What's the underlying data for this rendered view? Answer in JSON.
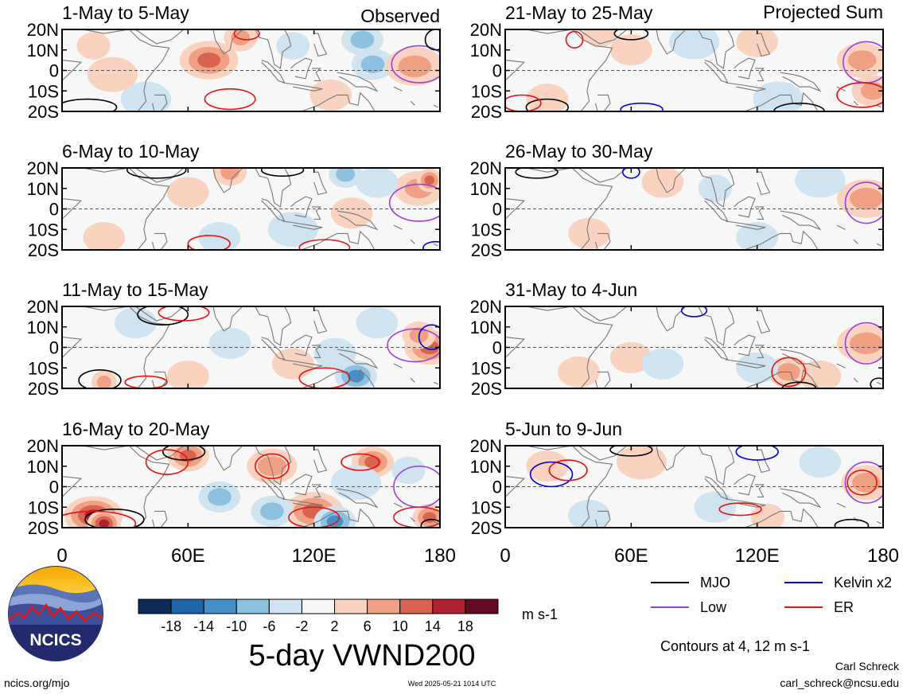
{
  "figure": {
    "title": "5-day VWND200",
    "footer_left": "ncics.org/mjo",
    "footer_center": "Wed 2025-05-21 1014 UTC",
    "author": "Carl Schreck",
    "email": "carl_schreck@ncsu.edu",
    "contour_note": "Contours at 4, 12 m s-1",
    "logo_text": "NCICS"
  },
  "chart_data": {
    "type": "heatmap",
    "variable": "VWND200",
    "units": "m s-1",
    "x_range": [
      0,
      180
    ],
    "y_range": [
      -20,
      20
    ],
    "x_ticks": [
      "0",
      "60E",
      "120E",
      "180"
    ],
    "x_tick_values": [
      0,
      60,
      120,
      180
    ],
    "y_ticks": [
      "20N",
      "10N",
      "0",
      "10S",
      "20S"
    ],
    "y_tick_values": [
      20,
      10,
      0,
      -10,
      -20
    ],
    "column_labels": [
      "Observed",
      "Projected Sum"
    ],
    "panels": [
      {
        "title": "1-May to 5-May",
        "column": 0,
        "row": 0,
        "kind": "observed",
        "blobs": [
          [
            70,
            5,
            12,
            14
          ],
          [
            40,
            -14,
            -4,
            12
          ],
          [
            85,
            16,
            8,
            8
          ],
          [
            143,
            15,
            -10,
            10
          ],
          [
            148,
            3,
            -7,
            10
          ],
          [
            110,
            12,
            -5,
            8
          ],
          [
            168,
            2,
            8,
            14
          ],
          [
            128,
            -12,
            6,
            10
          ],
          [
            24,
            -2,
            4,
            12
          ],
          [
            15,
            12,
            4,
            8
          ]
        ],
        "contours": [
          {
            "t": "ER",
            "x": 80,
            "y": -14,
            "rx": 12,
            "ry": 5
          },
          {
            "t": "Low",
            "x": 170,
            "y": 3,
            "rx": 13,
            "ry": 9
          },
          {
            "t": "MJO",
            "x": 12,
            "y": -18,
            "rx": 14,
            "ry": 4
          },
          {
            "t": "ER",
            "x": 88,
            "y": 18,
            "rx": 6,
            "ry": 3
          },
          {
            "t": "MJO",
            "x": 178,
            "y": 15,
            "rx": 5,
            "ry": 5
          }
        ]
      },
      {
        "title": "6-May to 10-May",
        "column": 0,
        "row": 1,
        "kind": "observed",
        "blobs": [
          [
            170,
            10,
            10,
            12
          ],
          [
            175,
            14,
            14,
            6
          ],
          [
            80,
            18,
            10,
            8
          ],
          [
            135,
            17,
            -8,
            8
          ],
          [
            150,
            13,
            -6,
            10
          ],
          [
            110,
            -10,
            -5,
            12
          ],
          [
            75,
            -14,
            -4,
            10
          ],
          [
            60,
            8,
            4,
            10
          ],
          [
            138,
            -2,
            4,
            10
          ],
          [
            20,
            -14,
            5,
            10
          ]
        ],
        "contours": [
          {
            "t": "Low",
            "x": 170,
            "y": 3,
            "rx": 14,
            "ry": 9
          },
          {
            "t": "ER",
            "x": 70,
            "y": -17,
            "rx": 10,
            "ry": 4
          },
          {
            "t": "ER",
            "x": 125,
            "y": -19,
            "rx": 12,
            "ry": 4
          },
          {
            "t": "MJO",
            "x": 45,
            "y": 19,
            "rx": 14,
            "ry": 4
          },
          {
            "t": "MJO",
            "x": 105,
            "y": 19,
            "rx": 10,
            "ry": 3
          },
          {
            "t": "Kelvin x2",
            "x": 178,
            "y": -19,
            "rx": 6,
            "ry": 3
          }
        ]
      },
      {
        "title": "11-May to 15-May",
        "column": 0,
        "row": 2,
        "kind": "observed",
        "blobs": [
          [
            175,
            0,
            12,
            12
          ],
          [
            170,
            6,
            8,
            8
          ],
          [
            140,
            -14,
            -12,
            10
          ],
          [
            130,
            -3,
            -6,
            10
          ],
          [
            20,
            -17,
            10,
            6
          ],
          [
            35,
            12,
            -5,
            10
          ],
          [
            110,
            -8,
            4,
            10
          ],
          [
            150,
            12,
            -4,
            10
          ],
          [
            60,
            -14,
            4,
            10
          ],
          [
            80,
            2,
            -4,
            10
          ]
        ],
        "contours": [
          {
            "t": "Low",
            "x": 168,
            "y": 1,
            "rx": 13,
            "ry": 8
          },
          {
            "t": "Kelvin x2",
            "x": 176,
            "y": 5,
            "rx": 6,
            "ry": 6
          },
          {
            "t": "MJO",
            "x": 48,
            "y": 16,
            "rx": 12,
            "ry": 5
          },
          {
            "t": "ER",
            "x": 58,
            "y": 17,
            "rx": 12,
            "ry": 4
          },
          {
            "t": "MJO",
            "x": 18,
            "y": -16,
            "rx": 10,
            "ry": 5
          },
          {
            "t": "ER",
            "x": 125,
            "y": -15,
            "rx": 12,
            "ry": 5
          },
          {
            "t": "ER",
            "x": 40,
            "y": -17,
            "rx": 10,
            "ry": 3
          }
        ]
      },
      {
        "title": "16-May to 20-May",
        "column": 0,
        "row": 3,
        "kind": "observed",
        "blobs": [
          [
            15,
            -14,
            16,
            14
          ],
          [
            20,
            -18,
            18,
            8
          ],
          [
            120,
            -12,
            14,
            14
          ],
          [
            130,
            -17,
            -12,
            10
          ],
          [
            100,
            -12,
            -10,
            10
          ],
          [
            60,
            15,
            12,
            10
          ],
          [
            100,
            10,
            10,
            12
          ],
          [
            148,
            12,
            12,
            10
          ],
          [
            140,
            2,
            -6,
            12
          ],
          [
            175,
            -15,
            12,
            8
          ],
          [
            75,
            -5,
            -8,
            10
          ],
          [
            165,
            8,
            -6,
            8
          ]
        ],
        "contours": [
          {
            "t": "MJO",
            "x": 25,
            "y": -16,
            "rx": 14,
            "ry": 5
          },
          {
            "t": "ER",
            "x": 15,
            "y": -18,
            "rx": 20,
            "ry": 6
          },
          {
            "t": "ER",
            "x": 120,
            "y": -15,
            "rx": 12,
            "ry": 5
          },
          {
            "t": "ER",
            "x": 100,
            "y": 10,
            "rx": 8,
            "ry": 6
          },
          {
            "t": "ER",
            "x": 142,
            "y": 12,
            "rx": 9,
            "ry": 4
          },
          {
            "t": "Low",
            "x": 170,
            "y": 0,
            "rx": 12,
            "ry": 10
          },
          {
            "t": "MJO",
            "x": 58,
            "y": 17,
            "rx": 10,
            "ry": 4
          },
          {
            "t": "ER",
            "x": 50,
            "y": 12,
            "rx": 10,
            "ry": 6
          },
          {
            "t": "ER",
            "x": 170,
            "y": -15,
            "rx": 12,
            "ry": 5
          },
          {
            "t": "MJO",
            "x": 176,
            "y": -19,
            "rx": 5,
            "ry": 3
          }
        ]
      },
      {
        "title": "21-May to 25-May",
        "column": 1,
        "row": 0,
        "kind": "projected",
        "blobs": [
          [
            170,
            5,
            8,
            12
          ],
          [
            175,
            -10,
            8,
            10
          ],
          [
            130,
            -14,
            -6,
            12
          ],
          [
            90,
            14,
            -4,
            12
          ],
          [
            60,
            10,
            4,
            10
          ],
          [
            45,
            18,
            4,
            8
          ],
          [
            20,
            -14,
            5,
            10
          ],
          [
            120,
            14,
            4,
            10
          ]
        ],
        "contours": [
          {
            "t": "Low",
            "x": 172,
            "y": 4,
            "rx": 11,
            "ry": 10
          },
          {
            "t": "ER",
            "x": 170,
            "y": -12,
            "rx": 12,
            "ry": 6
          },
          {
            "t": "MJO",
            "x": 140,
            "y": -20,
            "rx": 12,
            "ry": 4
          },
          {
            "t": "MJO",
            "x": 20,
            "y": -18,
            "rx": 10,
            "ry": 4
          },
          {
            "t": "ER",
            "x": 8,
            "y": -16,
            "rx": 9,
            "ry": 4
          },
          {
            "t": "Kelvin x2",
            "x": 65,
            "y": -19,
            "rx": 10,
            "ry": 3
          },
          {
            "t": "ER",
            "x": 33,
            "y": 15,
            "rx": 4,
            "ry": 4
          },
          {
            "t": "MJO",
            "x": 60,
            "y": 18,
            "rx": 8,
            "ry": 3
          }
        ]
      },
      {
        "title": "26-May to 30-May",
        "column": 1,
        "row": 1,
        "kind": "projected",
        "blobs": [
          [
            172,
            5,
            8,
            14
          ],
          [
            150,
            14,
            -4,
            12
          ],
          [
            75,
            13,
            4,
            10
          ],
          [
            100,
            10,
            -3,
            8
          ],
          [
            40,
            -12,
            4,
            10
          ],
          [
            120,
            -14,
            -3,
            10
          ]
        ],
        "contours": [
          {
            "t": "Low",
            "x": 172,
            "y": 3,
            "rx": 10,
            "ry": 10
          },
          {
            "t": "Kelvin x2",
            "x": 60,
            "y": 18,
            "rx": 4,
            "ry": 3
          },
          {
            "t": "MJO",
            "x": 15,
            "y": 18,
            "rx": 10,
            "ry": 3
          }
        ]
      },
      {
        "title": "31-May to 4-Jun",
        "column": 1,
        "row": 2,
        "kind": "projected",
        "blobs": [
          [
            172,
            2,
            8,
            14
          ],
          [
            135,
            -12,
            8,
            10
          ],
          [
            150,
            -14,
            6,
            10
          ],
          [
            120,
            -10,
            -5,
            10
          ],
          [
            60,
            -5,
            5,
            10
          ],
          [
            35,
            -12,
            4,
            10
          ],
          [
            75,
            -8,
            -3,
            10
          ]
        ],
        "contours": [
          {
            "t": "Low",
            "x": 172,
            "y": 2,
            "rx": 10,
            "ry": 10
          },
          {
            "t": "ER",
            "x": 135,
            "y": -12,
            "rx": 8,
            "ry": 7
          },
          {
            "t": "MJO",
            "x": 140,
            "y": -20,
            "rx": 8,
            "ry": 3
          },
          {
            "t": "Kelvin x2",
            "x": 90,
            "y": 18,
            "rx": 6,
            "ry": 3
          },
          {
            "t": "MJO",
            "x": 178,
            "y": -18,
            "rx": 4,
            "ry": 3
          }
        ]
      },
      {
        "title": "5-Jun to 9-Jun",
        "column": 1,
        "row": 3,
        "kind": "projected",
        "blobs": [
          [
            172,
            2,
            8,
            12
          ],
          [
            65,
            12,
            6,
            12
          ],
          [
            20,
            10,
            4,
            10
          ],
          [
            100,
            -10,
            -4,
            10
          ],
          [
            125,
            -15,
            5,
            8
          ],
          [
            150,
            12,
            -4,
            10
          ],
          [
            40,
            -14,
            -4,
            10
          ]
        ],
        "contours": [
          {
            "t": "Low",
            "x": 172,
            "y": 2,
            "rx": 10,
            "ry": 10
          },
          {
            "t": "Kelvin x2",
            "x": 22,
            "y": 6,
            "rx": 10,
            "ry": 6
          },
          {
            "t": "ER",
            "x": 30,
            "y": 8,
            "rx": 9,
            "ry": 5
          },
          {
            "t": "MJO",
            "x": 60,
            "y": 18,
            "rx": 10,
            "ry": 3
          },
          {
            "t": "Kelvin x2",
            "x": 120,
            "y": 17,
            "rx": 10,
            "ry": 4
          },
          {
            "t": "ER",
            "x": 170,
            "y": 2,
            "rx": 7,
            "ry": 6
          },
          {
            "t": "ER",
            "x": 112,
            "y": -11,
            "rx": 10,
            "ry": 3
          },
          {
            "t": "MJO",
            "x": 165,
            "y": -19,
            "rx": 8,
            "ry": 3
          }
        ]
      }
    ],
    "colorbar": {
      "labels": [
        "-18",
        "-14",
        "-10",
        "-6",
        "-2",
        "2",
        "6",
        "10",
        "14",
        "18"
      ],
      "values": [
        -18,
        -14,
        -10,
        -6,
        -2,
        2,
        6,
        10,
        14,
        18
      ],
      "colors": [
        "#0b2c55",
        "#1e64a8",
        "#4590c7",
        "#8dc1e0",
        "#cfe3f1",
        "#f7f7f7",
        "#f9d3c0",
        "#f0a184",
        "#d76351",
        "#b12030",
        "#650a22"
      ],
      "units": "m s-1"
    },
    "legend": [
      {
        "name": "MJO",
        "color": "#000000"
      },
      {
        "name": "Kelvin x2",
        "color": "#0000dd"
      },
      {
        "name": "Low",
        "color": "#9a3fe0"
      },
      {
        "name": "ER",
        "color": "#e81010"
      }
    ]
  }
}
